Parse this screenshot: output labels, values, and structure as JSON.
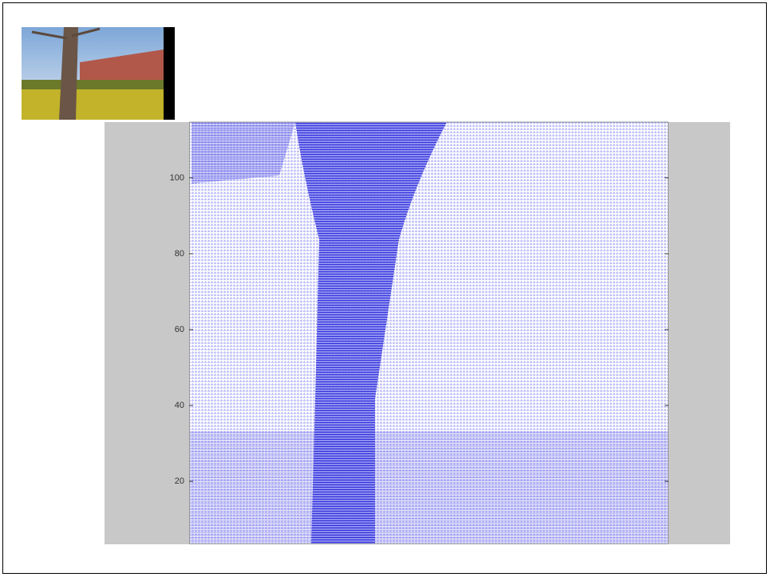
{
  "plot": {
    "ylim": [
      3.4,
      114.7
    ],
    "yticks": [
      20,
      40,
      60,
      80,
      100
    ]
  }
}
